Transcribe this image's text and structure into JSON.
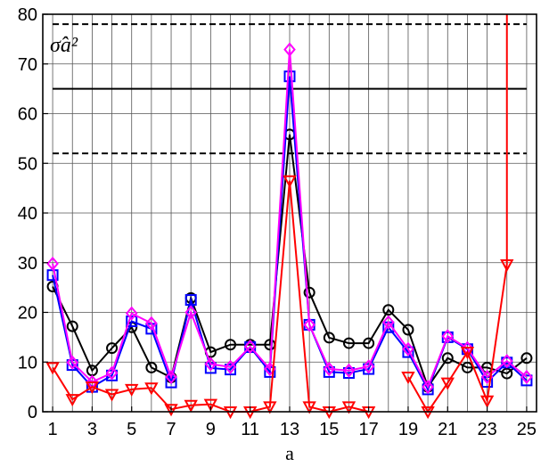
{
  "chart_data": {
    "type": "line",
    "xlabel": "a",
    "ylabel": "",
    "title": "",
    "xlim": [
      0.5,
      25.5
    ],
    "ylim": [
      0,
      80
    ],
    "xticks": [
      1,
      3,
      5,
      7,
      9,
      11,
      13,
      15,
      17,
      19,
      21,
      23,
      25
    ],
    "yticks": [
      0,
      10,
      20,
      30,
      40,
      50,
      60,
      70,
      80
    ],
    "grid": true,
    "annotation": "σ̂a²",
    "reference_lines": [
      {
        "y": 65,
        "style": "solid"
      },
      {
        "y": 78,
        "style": "dashed"
      },
      {
        "y": 52,
        "style": "dashed"
      }
    ],
    "x": [
      1,
      2,
      3,
      4,
      5,
      6,
      7,
      8,
      9,
      10,
      11,
      12,
      13,
      14,
      15,
      16,
      17,
      18,
      19,
      20,
      21,
      22,
      23,
      24,
      25
    ],
    "series": [
      {
        "color": "#000000",
        "marker": "circle",
        "values": [
          25.2,
          17.2,
          8.3,
          12.8,
          17.0,
          8.9,
          6.9,
          22.9,
          12.0,
          13.5,
          13.5,
          13.5,
          55.8,
          24.0,
          14.9,
          13.8,
          13.8,
          20.5,
          16.5,
          5.0,
          10.8,
          8.9,
          8.9,
          7.7,
          10.8
        ]
      },
      {
        "color": "#0000ff",
        "marker": "square",
        "values": [
          27.5,
          9.4,
          5.0,
          7.3,
          18.2,
          16.7,
          5.9,
          22.5,
          8.8,
          8.5,
          13.0,
          8.0,
          67.5,
          17.5,
          8.0,
          7.8,
          8.6,
          17.0,
          12.0,
          4.5,
          15.0,
          12.6,
          6.0,
          9.9,
          6.3
        ]
      },
      {
        "color": "#ff00ff",
        "marker": "diamond",
        "values": [
          29.8,
          9.9,
          6.0,
          7.8,
          19.8,
          17.8,
          7.0,
          20.0,
          9.6,
          9.0,
          13.1,
          8.6,
          72.9,
          17.5,
          8.6,
          8.3,
          9.1,
          18.0,
          12.6,
          5.0,
          15.2,
          12.8,
          7.0,
          10.2,
          7.0
        ]
      },
      {
        "color": "#ff0000",
        "marker": "triangle-down",
        "values": [
          8.9,
          2.5,
          5.0,
          3.5,
          4.5,
          4.8,
          0.5,
          1.3,
          1.5,
          0.0,
          0.0,
          1.0,
          46.5,
          1.0,
          0.0,
          1.0,
          0.0,
          null,
          7.0,
          0.0,
          5.8,
          12.0,
          2.2,
          29.6,
          null
        ]
      }
    ],
    "extra_segments": [
      {
        "series_index": 3,
        "from": [
          24,
          29.6
        ],
        "to": [
          24,
          80
        ]
      }
    ]
  }
}
